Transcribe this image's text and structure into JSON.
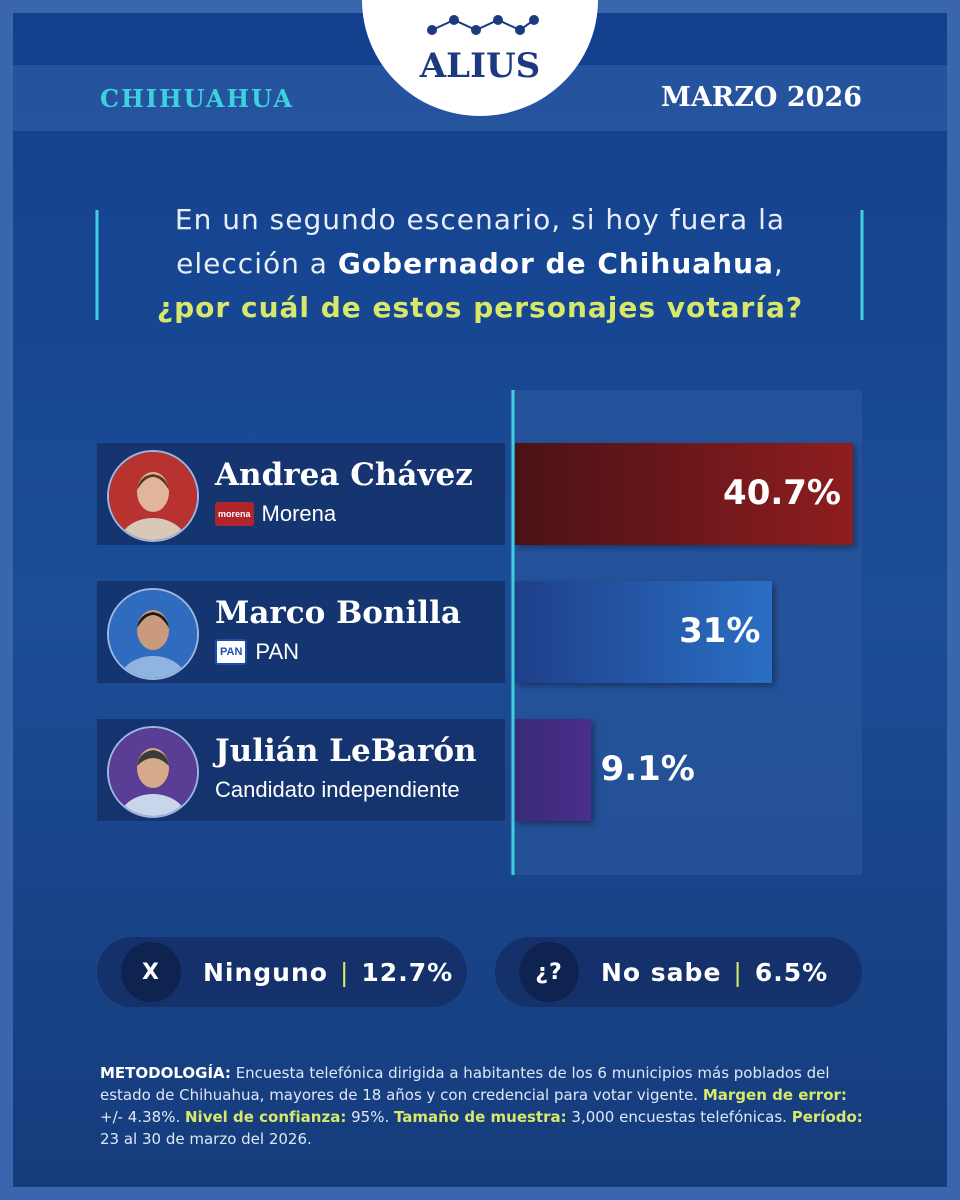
{
  "brand": "ALIUS",
  "region": "CHIHUAHUA",
  "date": "MARZO 2026",
  "question": {
    "lead": "En un segundo escenario, si hoy fuera la elección a ",
    "bold": "Gobernador de Chihuahua",
    "tail": ",",
    "highlight": "¿por cuál de estos personajes votaría?"
  },
  "chart_data": {
    "type": "bar",
    "orientation": "horizontal",
    "categories": [
      "Andrea Chávez",
      "Marco Bonilla",
      "Julián LeBarón"
    ],
    "parties": [
      "Morena",
      "PAN",
      "Candidato independiente"
    ],
    "party_logos": [
      "morena",
      "PAN",
      null
    ],
    "values": [
      40.7,
      31,
      9.1
    ],
    "value_labels": [
      "40.7%",
      "31%",
      "9.1%"
    ],
    "colors": [
      "#8e1d1f",
      "#2a6fc4",
      "#4a2f8a"
    ]
  },
  "others": [
    {
      "icon": "X",
      "label": "Ninguno",
      "value": "12.7%"
    },
    {
      "icon": "¿?",
      "label": "No sabe",
      "value": "6.5%"
    }
  ],
  "methodology": [
    {
      "label": "METODOLOGÍA:",
      "text": " Encuesta telefónica dirigida a habitantes de los 6 municipios más poblados del estado de Chihuahua, mayores de 18 años y con credencial para votar vigente. "
    },
    {
      "label": "Margen de error:",
      "text": " +/- 4.38%. "
    },
    {
      "label": "Nivel de confianza:",
      "text": " 95%. "
    },
    {
      "label": "Tamaño de muestra:",
      "text": " 3,000 encuestas telefónicas. "
    },
    {
      "label": "Período:",
      "text": " 23 al 30 de marzo del 2026."
    }
  ]
}
